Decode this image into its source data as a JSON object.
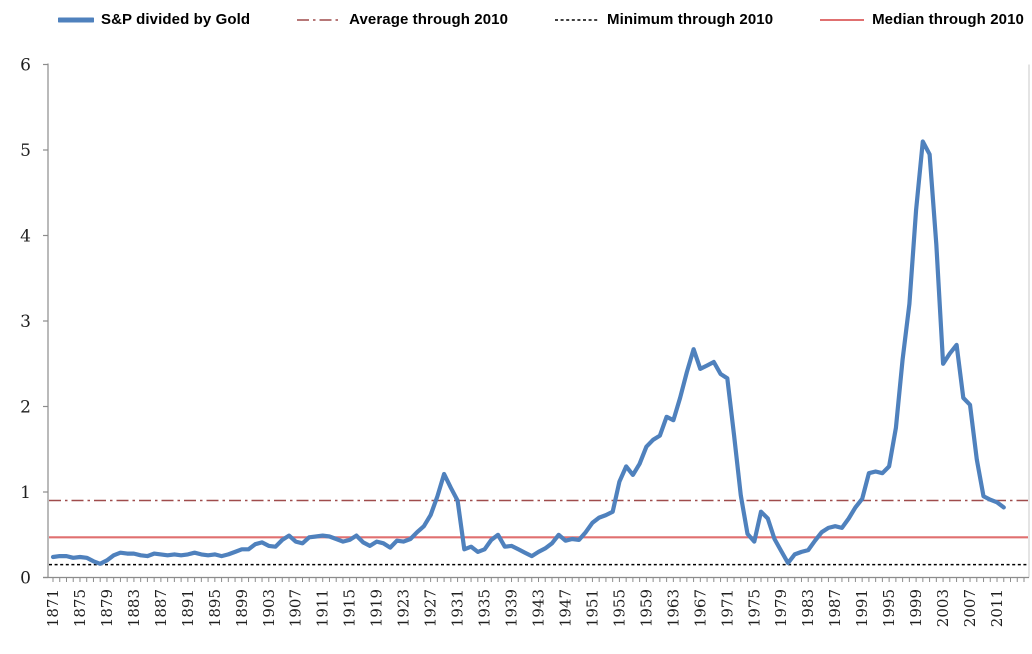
{
  "chart_data": {
    "type": "line",
    "title": "",
    "legend": [
      {
        "label": "S&P divided by Gold",
        "color": "#4F81BD",
        "style": "thick-solid"
      },
      {
        "label": "Average through 2010",
        "color": "#9F4C4C",
        "style": "dash-dot"
      },
      {
        "label": "Minimum through 2010",
        "color": "#000000",
        "style": "dotted"
      },
      {
        "label": "Median through 2010",
        "color": "#E07070",
        "style": "solid"
      }
    ],
    "y_axis": {
      "min": 0,
      "max": 6,
      "step": 1,
      "tick_labels": [
        "0",
        "1",
        "2",
        "3",
        "4",
        "5",
        "6"
      ]
    },
    "x_axis": {
      "start_year": 1871,
      "end_year": 2012,
      "label_step": 4
    },
    "x_label_years": [
      1871,
      1875,
      1879,
      1883,
      1887,
      1891,
      1895,
      1899,
      1903,
      1907,
      1911,
      1915,
      1919,
      1923,
      1927,
      1931,
      1935,
      1939,
      1943,
      1947,
      1951,
      1955,
      1959,
      1963,
      1967,
      1971,
      1975,
      1979,
      1983,
      1987,
      1991,
      1995,
      1999,
      2003,
      2007,
      2011
    ],
    "ref_lines": [
      {
        "name": "Average through 2010",
        "value": 0.9,
        "color": "#9F4C4C",
        "style": "dash-dot"
      },
      {
        "name": "Minimum through 2010",
        "value": 0.15,
        "color": "#000000",
        "style": "dotted"
      },
      {
        "name": "Median through 2010",
        "value": 0.47,
        "color": "#E07070",
        "style": "solid"
      }
    ],
    "series": [
      {
        "name": "S&P divided by Gold",
        "color": "#4F81BD",
        "style": "thick-solid",
        "start_year": 1871,
        "values": [
          0.24,
          0.25,
          0.25,
          0.23,
          0.24,
          0.23,
          0.19,
          0.16,
          0.2,
          0.26,
          0.29,
          0.28,
          0.28,
          0.26,
          0.25,
          0.28,
          0.27,
          0.26,
          0.27,
          0.26,
          0.27,
          0.29,
          0.27,
          0.26,
          0.27,
          0.25,
          0.27,
          0.3,
          0.33,
          0.33,
          0.39,
          0.41,
          0.37,
          0.36,
          0.44,
          0.49,
          0.42,
          0.4,
          0.47,
          0.48,
          0.49,
          0.48,
          0.45,
          0.42,
          0.44,
          0.49,
          0.41,
          0.37,
          0.42,
          0.4,
          0.35,
          0.43,
          0.42,
          0.45,
          0.53,
          0.6,
          0.73,
          0.95,
          1.21,
          1.05,
          0.9,
          0.33,
          0.36,
          0.3,
          0.33,
          0.44,
          0.5,
          0.36,
          0.37,
          0.33,
          0.29,
          0.25,
          0.3,
          0.34,
          0.4,
          0.5,
          0.43,
          0.45,
          0.44,
          0.53,
          0.64,
          0.7,
          0.73,
          0.77,
          1.12,
          1.3,
          1.2,
          1.33,
          1.53,
          1.61,
          1.66,
          1.88,
          1.84,
          2.1,
          2.4,
          2.67,
          2.44,
          2.48,
          2.52,
          2.38,
          2.33,
          1.67,
          0.96,
          0.51,
          0.42,
          0.77,
          0.69,
          0.45,
          0.31,
          0.17,
          0.27,
          0.3,
          0.32,
          0.43,
          0.53,
          0.58,
          0.6,
          0.58,
          0.69,
          0.82,
          0.92,
          1.22,
          1.24,
          1.22,
          1.3,
          1.75,
          2.55,
          3.2,
          4.3,
          5.1,
          4.95,
          3.9,
          2.5,
          2.62,
          2.72,
          2.1,
          2.02,
          1.38,
          0.95,
          0.91,
          0.88,
          0.82
        ]
      }
    ]
  }
}
